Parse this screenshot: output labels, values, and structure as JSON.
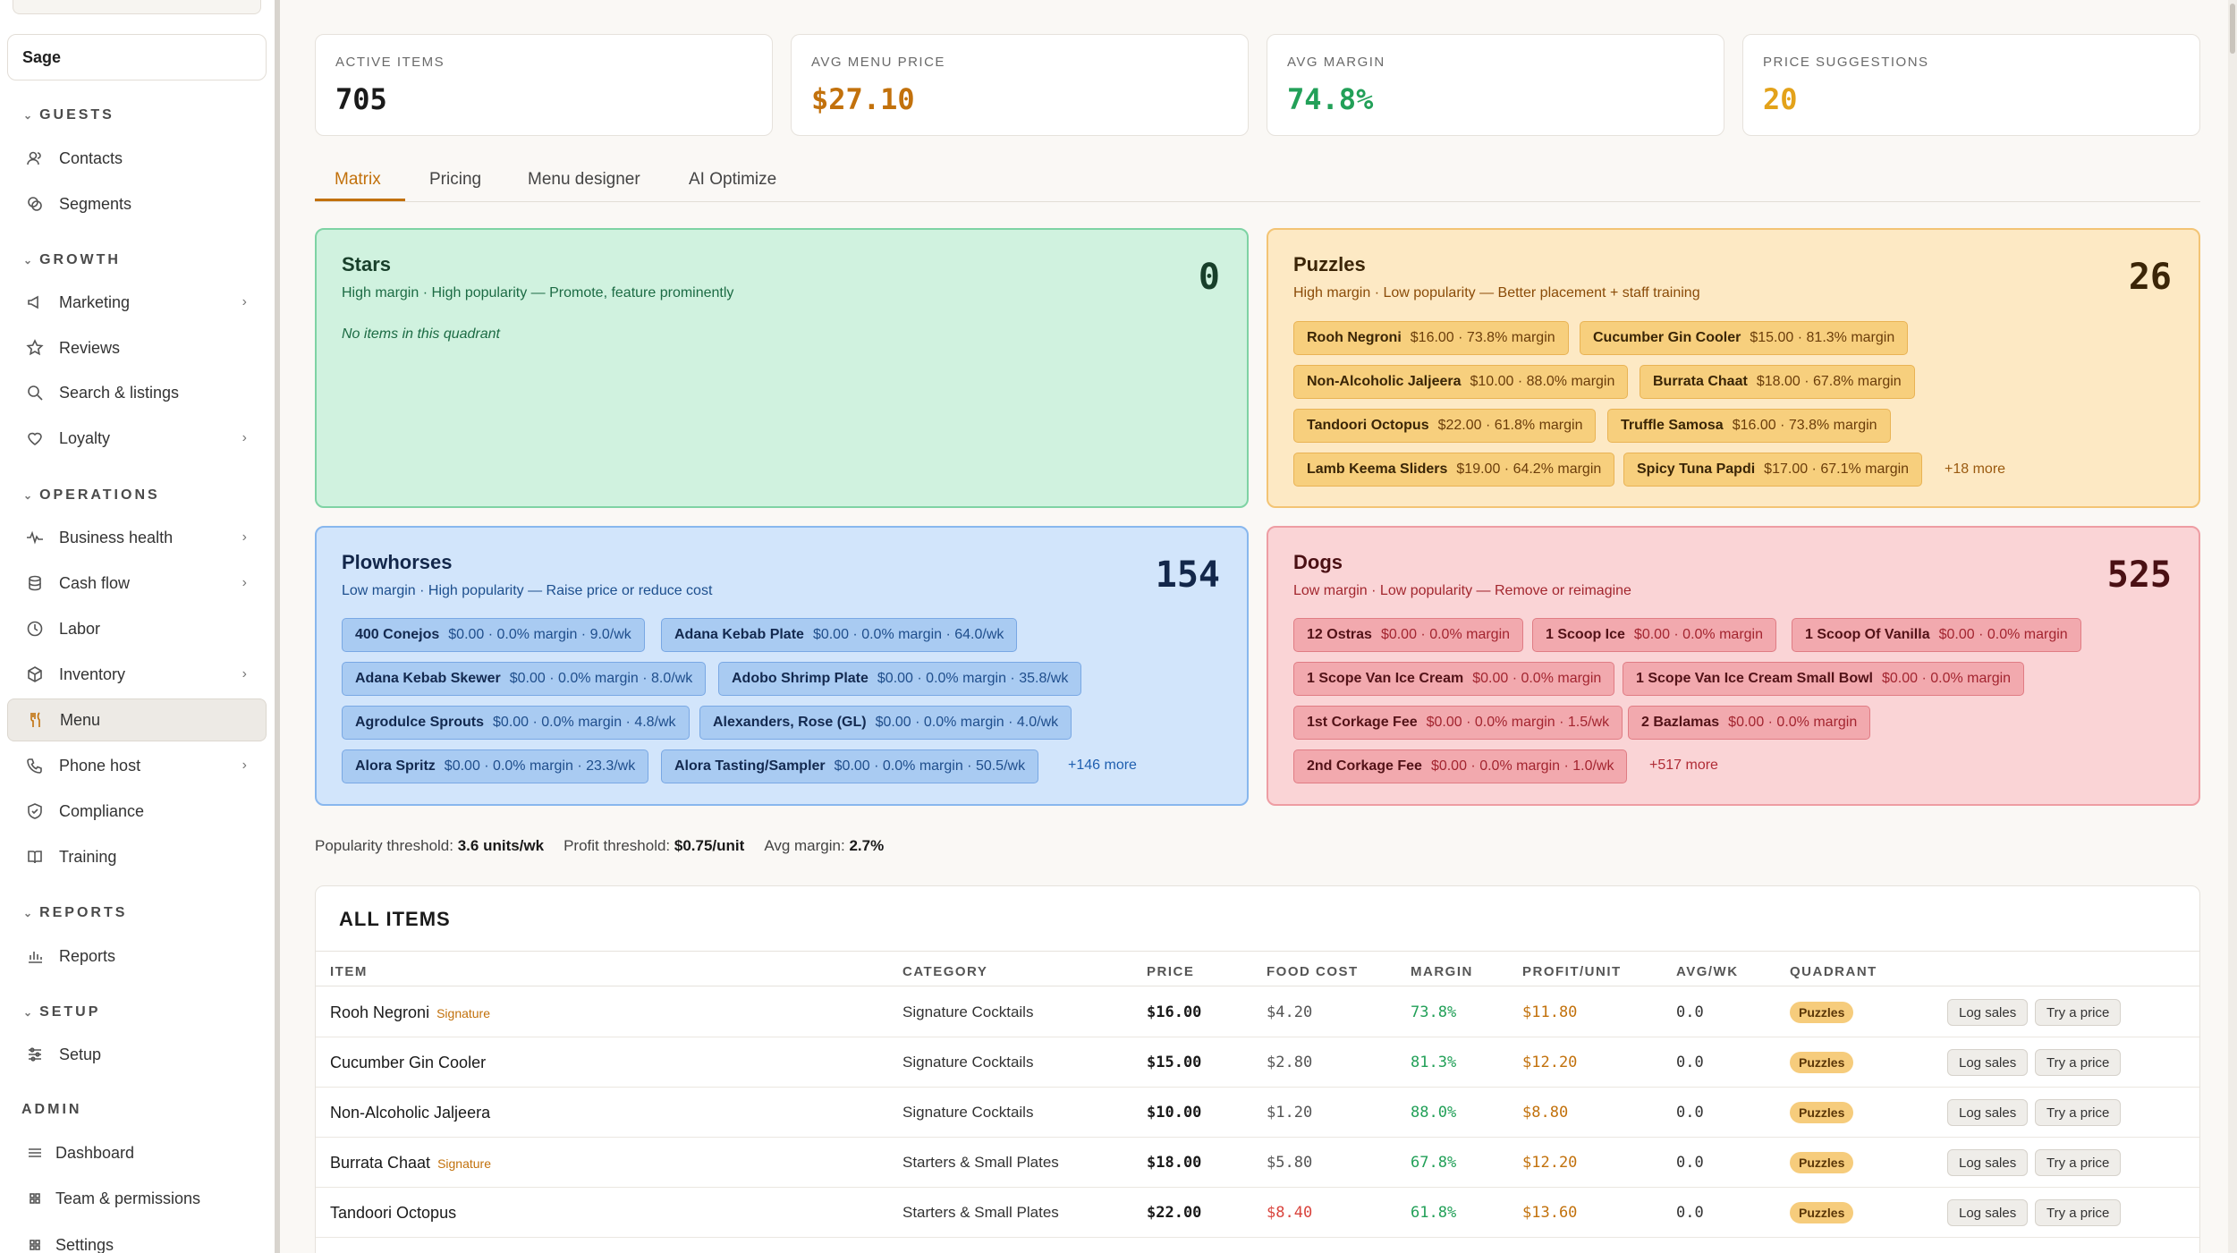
{
  "sidebar": {
    "org_name": "Sage",
    "sections": {
      "guests": "GUESTS",
      "growth": "GROWTH",
      "operations": "OPERATIONS",
      "reports": "REPORTS",
      "setup": "SETUP",
      "admin": "ADMIN"
    },
    "items": {
      "contacts": "Contacts",
      "segments": "Segments",
      "marketing": "Marketing",
      "reviews": "Reviews",
      "search_listings": "Search & listings",
      "loyalty": "Loyalty",
      "business_health": "Business health",
      "cash_flow": "Cash flow",
      "labor": "Labor",
      "inventory": "Inventory",
      "menu": "Menu",
      "phone_host": "Phone host",
      "compliance": "Compliance",
      "training": "Training",
      "reports": "Reports",
      "setup": "Setup",
      "dashboard": "Dashboard",
      "team": "Team & permissions",
      "settings": "Settings"
    }
  },
  "kpis": [
    {
      "label": "ACTIVE ITEMS",
      "value": "705",
      "color": "#1a1a1a"
    },
    {
      "label": "AVG MENU PRICE",
      "value": "$27.10",
      "color": "#c2710c"
    },
    {
      "label": "AVG MARGIN",
      "value": "74.8%",
      "color": "#22a058"
    },
    {
      "label": "PRICE SUGGESTIONS",
      "value": "20",
      "color": "#e3a21a"
    }
  ],
  "tabs": [
    "Matrix",
    "Pricing",
    "Menu designer",
    "AI Optimize"
  ],
  "quadrants": {
    "stars": {
      "title": "Stars",
      "subtitle": "High margin · High popularity — Promote, feature prominently",
      "count": "0",
      "empty": "No items in this quadrant"
    },
    "puzzles": {
      "title": "Puzzles",
      "subtitle": "High margin · Low popularity — Better placement + staff training",
      "count": "26",
      "chips": [
        {
          "name": "Rooh Negroni",
          "detail": "$16.00 · 73.8% margin"
        },
        {
          "name": "Cucumber Gin Cooler",
          "detail": "$15.00 · 81.3% margin"
        },
        {
          "name": "Non-Alcoholic Jaljeera",
          "detail": "$10.00 · 88.0% margin"
        },
        {
          "name": "Burrata Chaat",
          "detail": "$18.00 · 67.8% margin"
        },
        {
          "name": "Tandoori Octopus",
          "detail": "$22.00 · 61.8% margin"
        },
        {
          "name": "Truffle Samosa",
          "detail": "$16.00 · 73.8% margin"
        },
        {
          "name": "Lamb Keema Sliders",
          "detail": "$19.00 · 64.2% margin"
        },
        {
          "name": "Spicy Tuna Papdi",
          "detail": "$17.00 · 67.1% margin"
        }
      ],
      "more": "+18 more"
    },
    "plowhorses": {
      "title": "Plowhorses",
      "subtitle": "Low margin · High popularity — Raise price or reduce cost",
      "count": "154",
      "chips": [
        {
          "name": "400 Conejos",
          "detail": "$0.00 · 0.0% margin · 9.0/wk"
        },
        {
          "name": "Adana Kebab Plate",
          "detail": "$0.00 · 0.0% margin · 64.0/wk"
        },
        {
          "name": "Adana Kebab Skewer",
          "detail": "$0.00 · 0.0% margin · 8.0/wk"
        },
        {
          "name": "Adobo Shrimp Plate",
          "detail": "$0.00 · 0.0% margin · 35.8/wk"
        },
        {
          "name": "Agrodulce Sprouts",
          "detail": "$0.00 · 0.0% margin · 4.8/wk"
        },
        {
          "name": "Alexanders, Rose (GL)",
          "detail": "$0.00 · 0.0% margin · 4.0/wk"
        },
        {
          "name": "Alora Spritz",
          "detail": "$0.00 · 0.0% margin · 23.3/wk"
        },
        {
          "name": "Alora Tasting/Sampler",
          "detail": "$0.00 · 0.0% margin · 50.5/wk"
        }
      ],
      "more": "+146 more"
    },
    "dogs": {
      "title": "Dogs",
      "subtitle": "Low margin · Low popularity — Remove or reimagine",
      "count": "525",
      "chips": [
        {
          "name": "12 Ostras",
          "detail": "$0.00 · 0.0% margin"
        },
        {
          "name": "1 Scoop Ice",
          "detail": "$0.00 · 0.0% margin"
        },
        {
          "name": "1 Scoop Of Vanilla",
          "detail": "$0.00 · 0.0% margin"
        },
        {
          "name": "1 Scope Van Ice Cream",
          "detail": "$0.00 · 0.0% margin"
        },
        {
          "name": "1 Scope Van Ice Cream Small Bowl",
          "detail": "$0.00 · 0.0% margin"
        },
        {
          "name": "1st Corkage Fee",
          "detail": "$0.00 · 0.0% margin · 1.5/wk"
        },
        {
          "name": "2 Bazlamas",
          "detail": "$0.00 · 0.0% margin"
        },
        {
          "name": "2nd Corkage Fee",
          "detail": "$0.00 · 0.0% margin · 1.0/wk"
        }
      ],
      "more": "+517 more"
    }
  },
  "thresholds": {
    "popularity_label": "Popularity threshold:",
    "popularity_value": "3.6 units/wk",
    "profit_label": "Profit threshold:",
    "profit_value": "$0.75/unit",
    "margin_label": "Avg margin:",
    "margin_value": "2.7%"
  },
  "table": {
    "title": "ALL ITEMS",
    "headers": [
      "ITEM",
      "CATEGORY",
      "PRICE",
      "FOOD COST",
      "MARGIN",
      "PROFIT/UNIT",
      "AVG/WK",
      "QUADRANT"
    ],
    "log_label": "Log sales",
    "try_label": "Try a price",
    "rows": [
      {
        "item": "Rooh Negroni",
        "tag": "Signature",
        "category": "Signature Cocktails",
        "price": "$16.00",
        "cost": "$4.20",
        "cost_high": false,
        "margin": "73.8%",
        "profit": "$11.80",
        "avg": "0.0",
        "quadrant": "Puzzles"
      },
      {
        "item": "Cucumber Gin Cooler",
        "tag": "",
        "category": "Signature Cocktails",
        "price": "$15.00",
        "cost": "$2.80",
        "cost_high": false,
        "margin": "81.3%",
        "profit": "$12.20",
        "avg": "0.0",
        "quadrant": "Puzzles"
      },
      {
        "item": "Non-Alcoholic Jaljeera",
        "tag": "",
        "category": "Signature Cocktails",
        "price": "$10.00",
        "cost": "$1.20",
        "cost_high": false,
        "margin": "88.0%",
        "profit": "$8.80",
        "avg": "0.0",
        "quadrant": "Puzzles"
      },
      {
        "item": "Burrata Chaat",
        "tag": "Signature",
        "category": "Starters & Small Plates",
        "price": "$18.00",
        "cost": "$5.80",
        "cost_high": false,
        "margin": "67.8%",
        "profit": "$12.20",
        "avg": "0.0",
        "quadrant": "Puzzles"
      },
      {
        "item": "Tandoori Octopus",
        "tag": "",
        "category": "Starters & Small Plates",
        "price": "$22.00",
        "cost": "$8.40",
        "cost_high": true,
        "margin": "61.8%",
        "profit": "$13.60",
        "avg": "0.0",
        "quadrant": "Puzzles"
      }
    ]
  }
}
